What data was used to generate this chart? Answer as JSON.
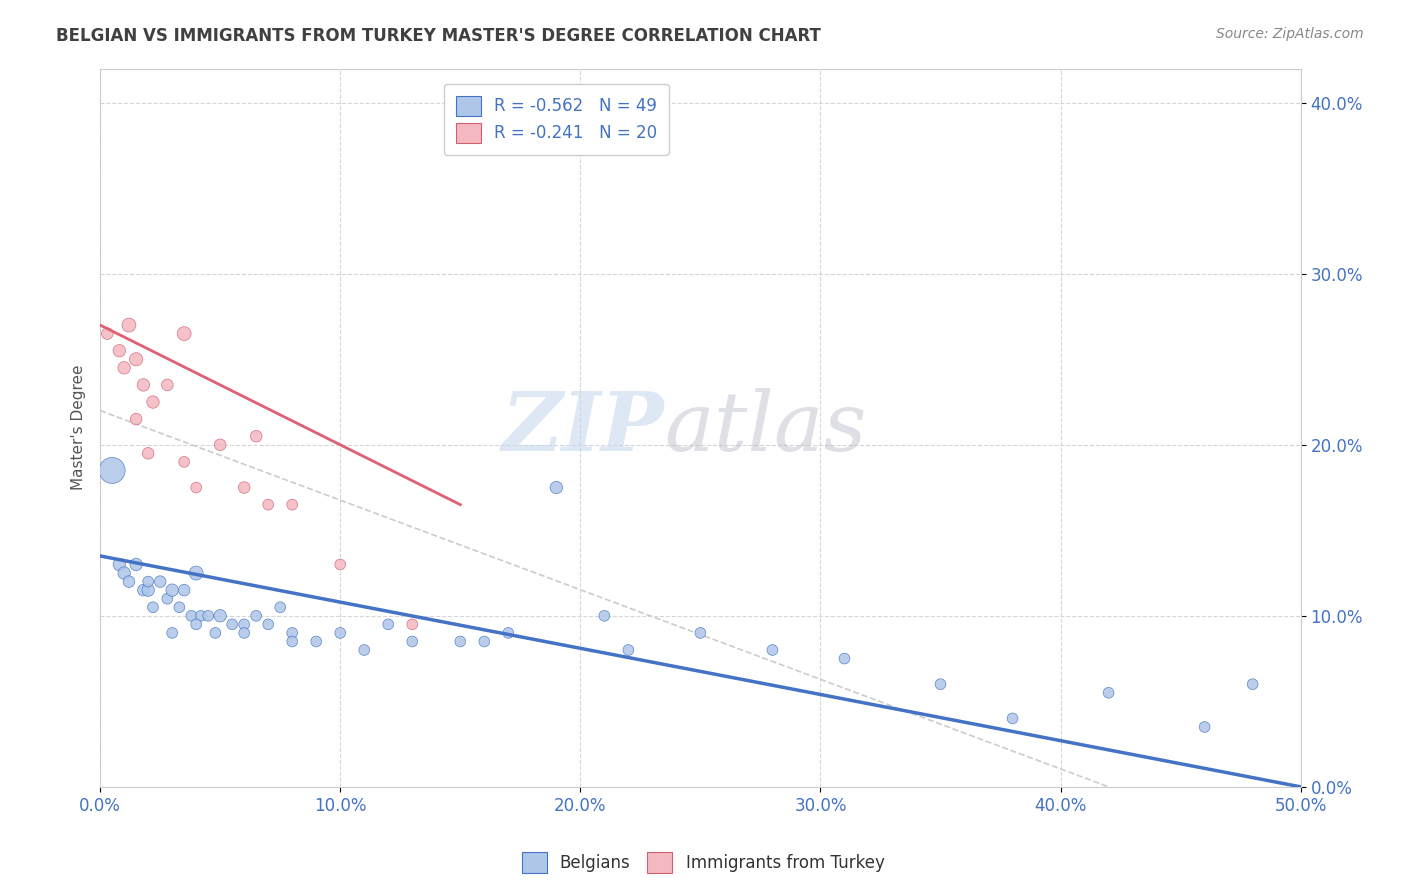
{
  "title": "BELGIAN VS IMMIGRANTS FROM TURKEY MASTER'S DEGREE CORRELATION CHART",
  "source": "Source: ZipAtlas.com",
  "xlabel_ticks": [
    "0.0%",
    "10.0%",
    "20.0%",
    "30.0%",
    "40.0%",
    "50.0%"
  ],
  "xlabel_vals": [
    0.0,
    0.1,
    0.2,
    0.3,
    0.4,
    0.5
  ],
  "ylabel_ticks": [
    "0.0%",
    "10.0%",
    "20.0%",
    "30.0%",
    "40.0%"
  ],
  "ylabel_vals": [
    0.0,
    0.1,
    0.2,
    0.3,
    0.4
  ],
  "xlim": [
    0.0,
    0.5
  ],
  "ylim": [
    0.0,
    0.42
  ],
  "ylabel": "Master's Degree",
  "legend_blue_label": "R = -0.562   N = 49",
  "legend_pink_label": "R = -0.241   N = 20",
  "legend_blue_color": "#aec6e8",
  "legend_pink_color": "#f4b8c1",
  "blue_dot_color": "#aec6e8",
  "pink_dot_color": "#f4b8c1",
  "blue_line_color": "#4472c4",
  "pink_line_color": "#e06070",
  "blue_scatter_x": [
    0.005,
    0.008,
    0.01,
    0.012,
    0.015,
    0.018,
    0.02,
    0.022,
    0.025,
    0.028,
    0.03,
    0.033,
    0.035,
    0.038,
    0.04,
    0.042,
    0.045,
    0.048,
    0.05,
    0.055,
    0.06,
    0.065,
    0.07,
    0.075,
    0.08,
    0.09,
    0.1,
    0.11,
    0.12,
    0.13,
    0.15,
    0.17,
    0.19,
    0.22,
    0.25,
    0.28,
    0.31,
    0.35,
    0.38,
    0.42,
    0.46,
    0.48,
    0.21,
    0.16,
    0.08,
    0.06,
    0.04,
    0.03,
    0.02
  ],
  "blue_scatter_y": [
    0.185,
    0.13,
    0.125,
    0.12,
    0.13,
    0.115,
    0.115,
    0.105,
    0.12,
    0.11,
    0.115,
    0.105,
    0.115,
    0.1,
    0.125,
    0.1,
    0.1,
    0.09,
    0.1,
    0.095,
    0.095,
    0.1,
    0.095,
    0.105,
    0.09,
    0.085,
    0.09,
    0.08,
    0.095,
    0.085,
    0.085,
    0.09,
    0.175,
    0.08,
    0.09,
    0.08,
    0.075,
    0.06,
    0.04,
    0.055,
    0.035,
    0.06,
    0.1,
    0.085,
    0.085,
    0.09,
    0.095,
    0.09,
    0.12
  ],
  "blue_scatter_sizes": [
    350,
    80,
    80,
    70,
    80,
    70,
    80,
    60,
    70,
    60,
    80,
    60,
    70,
    60,
    100,
    60,
    60,
    60,
    80,
    60,
    60,
    60,
    60,
    60,
    60,
    60,
    60,
    60,
    60,
    60,
    60,
    60,
    80,
    60,
    60,
    60,
    60,
    60,
    60,
    60,
    60,
    60,
    60,
    60,
    60,
    60,
    60,
    60,
    60
  ],
  "pink_scatter_x": [
    0.003,
    0.008,
    0.01,
    0.012,
    0.015,
    0.018,
    0.022,
    0.028,
    0.035,
    0.04,
    0.05,
    0.06,
    0.065,
    0.07,
    0.08,
    0.1,
    0.13,
    0.035,
    0.02,
    0.015
  ],
  "pink_scatter_y": [
    0.265,
    0.255,
    0.245,
    0.27,
    0.25,
    0.235,
    0.225,
    0.235,
    0.265,
    0.175,
    0.2,
    0.175,
    0.205,
    0.165,
    0.165,
    0.13,
    0.095,
    0.19,
    0.195,
    0.215
  ],
  "pink_scatter_sizes": [
    70,
    80,
    80,
    100,
    90,
    80,
    80,
    70,
    100,
    60,
    70,
    70,
    70,
    60,
    60,
    60,
    60,
    60,
    70,
    70
  ],
  "blue_trend_x0": 0.0,
  "blue_trend_y0": 0.135,
  "blue_trend_x1": 0.5,
  "blue_trend_y1": 0.0,
  "pink_trend_x0": 0.0,
  "pink_trend_y0": 0.27,
  "pink_trend_x1": 0.15,
  "pink_trend_y1": 0.165,
  "gray_trend_x0": 0.0,
  "gray_trend_y0": 0.22,
  "gray_trend_x1": 0.42,
  "gray_trend_y1": 0.0,
  "background_color": "#ffffff",
  "grid_color": "#cccccc",
  "title_color": "#404040",
  "axis_tick_color": "#4472c4",
  "ylabel_color": "#555555"
}
